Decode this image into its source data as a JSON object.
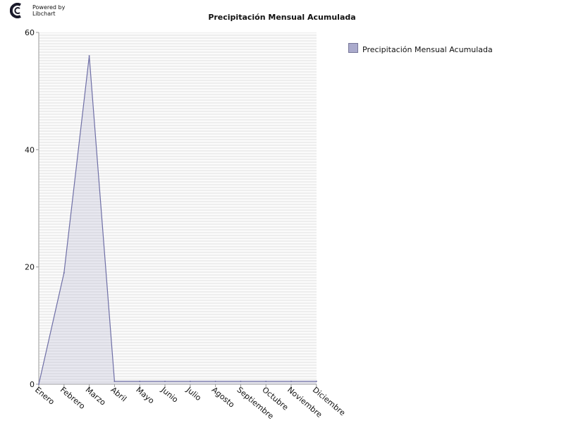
{
  "branding": {
    "powered_line1": "Powered by",
    "powered_line2": "Libchart"
  },
  "legend_label": "Precipitación Mensual Acumulada",
  "colors": {
    "line": "#6f6fa6",
    "fill": "#aaaacc",
    "plot_bg": "#eeeeee",
    "grid": "#ffffff",
    "axis": "#999999",
    "text": "#111111"
  },
  "chart_data": {
    "type": "line",
    "title": "Precipitación Mensual Acumulada",
    "xlabel": "",
    "ylabel": "",
    "categories": [
      "Enero",
      "Febrero",
      "Marzo",
      "Abril",
      "Mayo",
      "Junio",
      "Julio",
      "Agosto",
      "Septiembre",
      "Octubre",
      "Noviembre",
      "Diciembre"
    ],
    "series": [
      {
        "name": "Precipitación Mensual Acumulada",
        "values": [
          0,
          19,
          56,
          0.5,
          0.5,
          0.5,
          0.5,
          0.5,
          0.5,
          0.5,
          0.5,
          0.5
        ]
      }
    ],
    "ylim": [
      0,
      60
    ],
    "yticks": [
      0,
      20,
      40,
      60
    ],
    "grid": true,
    "legend_position": "right"
  }
}
